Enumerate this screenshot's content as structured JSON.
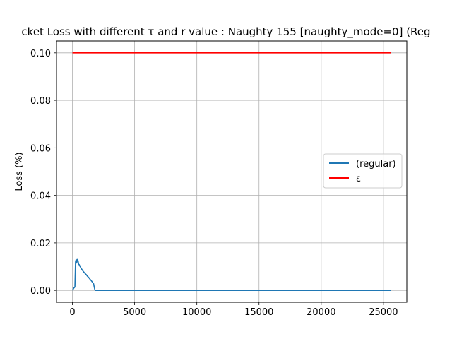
{
  "chart_data": {
    "type": "line",
    "title": "cket Loss with different τ and r value : Naughty 155 [naughty_mode=0] (Reg",
    "xlabel": "",
    "ylabel": "Loss (%)",
    "xlim": [
      -1280,
      26880
    ],
    "ylim": [
      -0.005,
      0.105
    ],
    "xticks": [
      0,
      5000,
      10000,
      15000,
      20000,
      25000
    ],
    "xtick_labels": [
      "0",
      "5000",
      "10000",
      "15000",
      "20000",
      "25000"
    ],
    "yticks": [
      0.0,
      0.02,
      0.04,
      0.06,
      0.08,
      0.1
    ],
    "ytick_labels": [
      "0.00",
      "0.02",
      "0.04",
      "0.06",
      "0.08",
      "0.10"
    ],
    "grid": true,
    "legend": "center-right",
    "series": [
      {
        "name": "(regular)",
        "color": "#1f77b4",
        "x": [
          0,
          60,
          110,
          160,
          200,
          250,
          300,
          350,
          400,
          450,
          500,
          550,
          600,
          650,
          700,
          800,
          900,
          1000,
          1100,
          1200,
          1300,
          1400,
          1500,
          1600,
          1700,
          1750,
          1800,
          1850,
          2000,
          3000,
          5000,
          10000,
          15000,
          20000,
          25000,
          25600
        ],
        "y": [
          0.0,
          0.0005,
          0.001,
          0.0012,
          0.0015,
          0.012,
          0.013,
          0.0115,
          0.013,
          0.0125,
          0.011,
          0.0108,
          0.0102,
          0.0098,
          0.0093,
          0.0085,
          0.0078,
          0.0072,
          0.0067,
          0.006,
          0.0055,
          0.0048,
          0.0042,
          0.0035,
          0.0028,
          0.0015,
          0.0003,
          0.0,
          0.0,
          0.0,
          0.0,
          0.0,
          0.0,
          0.0,
          0.0,
          0.0
        ]
      },
      {
        "name": "ε",
        "color": "#ff0000",
        "x": [
          0,
          25600
        ],
        "y": [
          0.1,
          0.1
        ]
      }
    ]
  }
}
